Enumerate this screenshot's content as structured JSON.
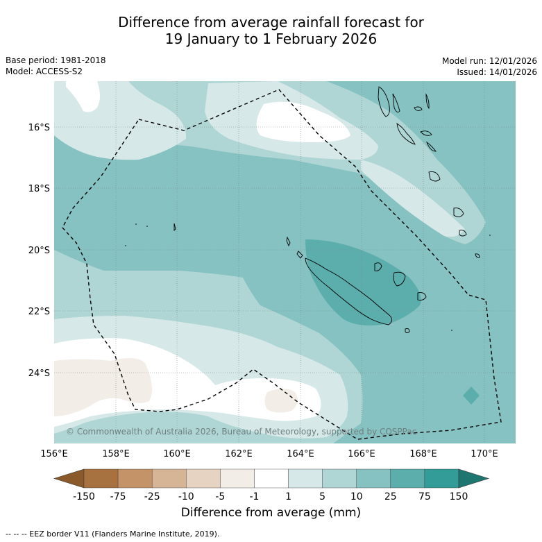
{
  "title_line1": "Difference from average rainfall forecast for",
  "title_line2": "19 January to 1 February 2026",
  "base_period": "Base period: 1981-2018",
  "model": "Model: ACCESS-S2",
  "model_run": "Model run: 12/01/2026",
  "issued": "Issued: 14/01/2026",
  "copyright": "© Commonwealth of Australia 2026, Bureau of Meteorology, supported by COSPPac",
  "lat_labels": [
    "16°S",
    "18°S",
    "20°S",
    "22°S",
    "24°S"
  ],
  "lon_labels": [
    "156°E",
    "158°E",
    "160°E",
    "162°E",
    "164°E",
    "166°E",
    "168°E",
    "170°E"
  ],
  "colorbar": {
    "labels": [
      "-150",
      "-75",
      "-25",
      "-10",
      "-5",
      "-1",
      "1",
      "5",
      "10",
      "25",
      "75",
      "150"
    ],
    "colors": [
      "#8b5a2b",
      "#a87240",
      "#c49468",
      "#d6b496",
      "#e7d3c1",
      "#f2ede7",
      "#ffffff",
      "#d6e9e8",
      "#afd6d5",
      "#86c2c1",
      "#5caead",
      "#349c98",
      "#1d7670"
    ],
    "title": "Difference from average (mm)"
  },
  "footnote": "-- -- -- EEZ border V11 (Flanders Marine Institute, 2019).",
  "map_colors": {
    "c1": "#d6e9e8",
    "c2": "#afd6d5",
    "c3": "#86c2c1",
    "c4": "#5caead",
    "white": "#ffffff",
    "brown": "#f2ede7"
  }
}
